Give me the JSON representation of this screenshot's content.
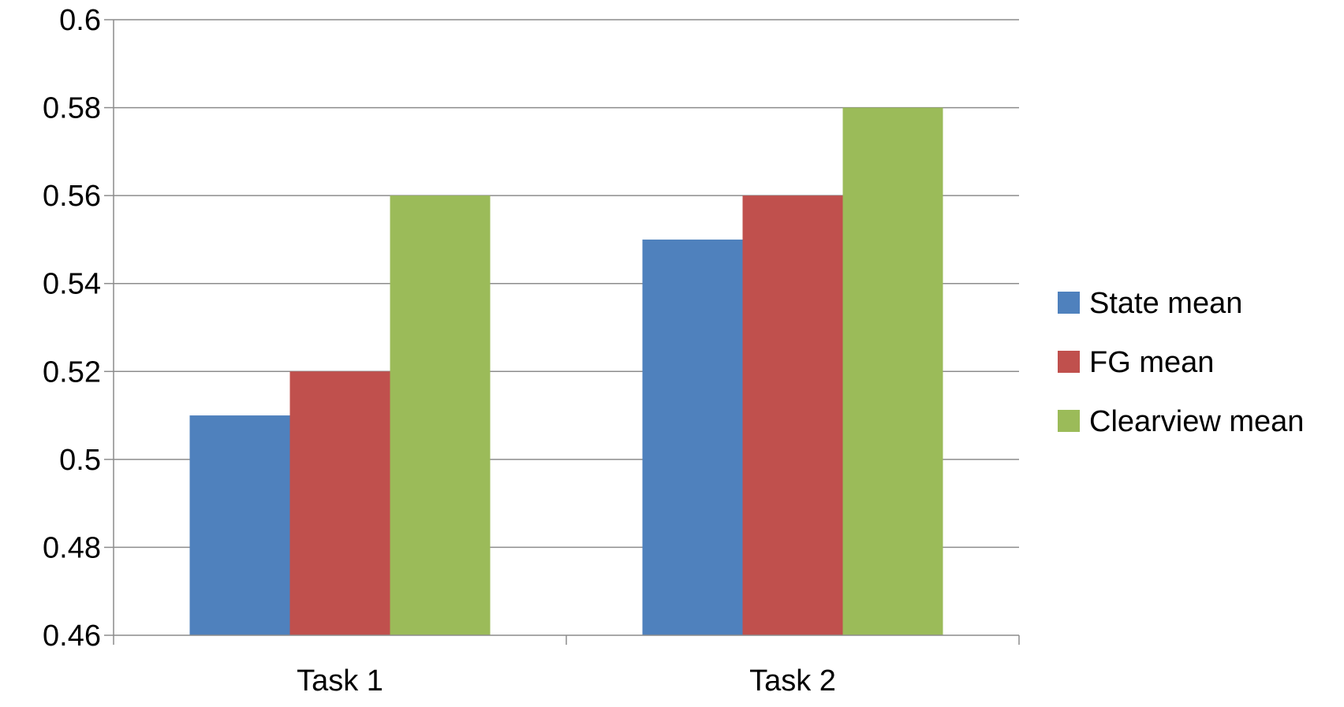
{
  "chart_data": {
    "type": "bar",
    "title": "",
    "xlabel": "",
    "ylabel": "",
    "categories": [
      "Task 1",
      "Task 2"
    ],
    "series": [
      {
        "name": "State mean",
        "values": [
          0.51,
          0.55
        ],
        "color": "#4F81BD"
      },
      {
        "name": "FG mean",
        "values": [
          0.52,
          0.56
        ],
        "color": "#C0504D"
      },
      {
        "name": "Clearview mean",
        "values": [
          0.56,
          0.58
        ],
        "color": "#9BBB59"
      }
    ],
    "ylim": [
      0.46,
      0.6
    ],
    "yticks": [
      "0.46",
      "0.48",
      "0.5",
      "0.52",
      "0.54",
      "0.56",
      "0.58",
      "0.6"
    ],
    "grid": true,
    "legend_position": "right"
  }
}
